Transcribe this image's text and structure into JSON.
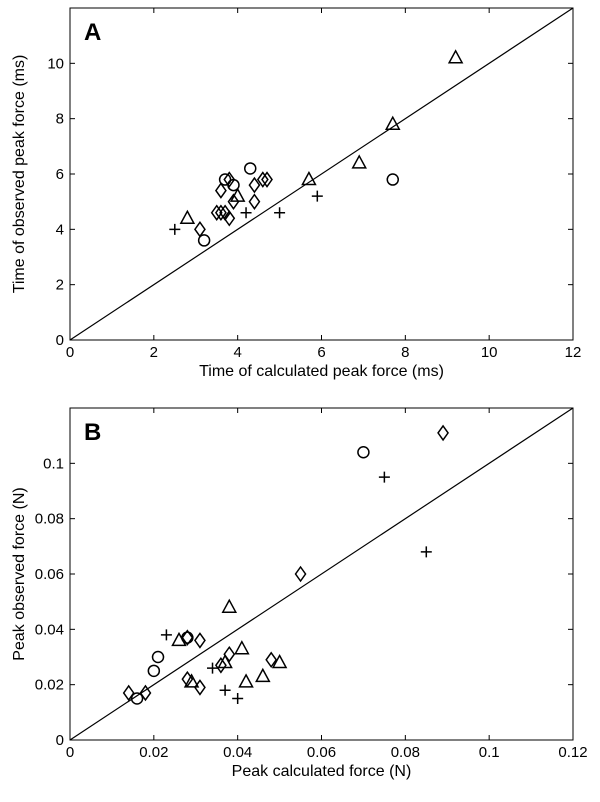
{
  "chart_data": [
    {
      "type": "scatter",
      "panel_label": "A",
      "xlabel": "Time of calculated peak force (ms)",
      "ylabel": "Time of observed peak  force (ms)",
      "xlim": [
        0,
        12
      ],
      "ylim": [
        0,
        12
      ],
      "xticks": [
        "0",
        "2",
        "4",
        "6",
        "8",
        "10",
        "12"
      ],
      "yticks": [
        "0",
        "2",
        "4",
        "6",
        "8",
        "10"
      ],
      "grid": false,
      "identity_line": true,
      "series": [
        {
          "marker": "circle",
          "points": [
            [
              3.2,
              3.6
            ],
            [
              3.7,
              5.8
            ],
            [
              3.9,
              5.6
            ],
            [
              4.3,
              6.2
            ],
            [
              7.7,
              5.8
            ]
          ]
        },
        {
          "marker": "plus",
          "points": [
            [
              2.5,
              4.0
            ],
            [
              4.2,
              4.6
            ],
            [
              5.0,
              4.6
            ],
            [
              5.9,
              5.2
            ]
          ]
        },
        {
          "marker": "triangle",
          "points": [
            [
              2.8,
              4.4
            ],
            [
              4.0,
              5.2
            ],
            [
              5.7,
              5.8
            ],
            [
              6.9,
              6.4
            ],
            [
              7.7,
              7.8
            ],
            [
              9.2,
              10.2
            ]
          ]
        },
        {
          "marker": "diamond",
          "points": [
            [
              3.1,
              4.0
            ],
            [
              3.5,
              4.6
            ],
            [
              3.6,
              5.4
            ],
            [
              3.6,
              4.6
            ],
            [
              3.7,
              4.6
            ],
            [
              3.8,
              4.4
            ],
            [
              3.8,
              5.8
            ],
            [
              3.9,
              5.0
            ],
            [
              4.4,
              5.0
            ],
            [
              4.4,
              5.6
            ],
            [
              4.6,
              5.8
            ],
            [
              4.7,
              5.8
            ]
          ]
        }
      ]
    },
    {
      "type": "scatter",
      "panel_label": "B",
      "xlabel": "Peak calculated force (N)",
      "ylabel": "Peak observed force (N)",
      "xlim": [
        0,
        0.12
      ],
      "ylim": [
        0,
        0.12
      ],
      "xticks": [
        "0",
        "0.02",
        "0.04",
        "0.06",
        "0.08",
        "0.1",
        "0.12"
      ],
      "yticks": [
        "0",
        "0.02",
        "0.04",
        "0.06",
        "0.08",
        "0.1"
      ],
      "grid": false,
      "identity_line": true,
      "series": [
        {
          "marker": "circle",
          "points": [
            [
              0.016,
              0.015
            ],
            [
              0.02,
              0.025
            ],
            [
              0.021,
              0.03
            ],
            [
              0.028,
              0.037
            ],
            [
              0.07,
              0.104
            ]
          ]
        },
        {
          "marker": "plus",
          "points": [
            [
              0.023,
              0.038
            ],
            [
              0.034,
              0.026
            ],
            [
              0.037,
              0.018
            ],
            [
              0.04,
              0.015
            ],
            [
              0.075,
              0.095
            ],
            [
              0.085,
              0.068
            ]
          ]
        },
        {
          "marker": "triangle",
          "points": [
            [
              0.026,
              0.036
            ],
            [
              0.029,
              0.021
            ],
            [
              0.037,
              0.028
            ],
            [
              0.038,
              0.048
            ],
            [
              0.041,
              0.033
            ],
            [
              0.042,
              0.021
            ],
            [
              0.046,
              0.023
            ],
            [
              0.05,
              0.028
            ]
          ]
        },
        {
          "marker": "diamond",
          "points": [
            [
              0.014,
              0.017
            ],
            [
              0.018,
              0.017
            ],
            [
              0.028,
              0.037
            ],
            [
              0.028,
              0.022
            ],
            [
              0.031,
              0.036
            ],
            [
              0.031,
              0.019
            ],
            [
              0.036,
              0.027
            ],
            [
              0.038,
              0.031
            ],
            [
              0.048,
              0.029
            ],
            [
              0.055,
              0.06
            ],
            [
              0.089,
              0.111
            ]
          ]
        }
      ]
    }
  ]
}
